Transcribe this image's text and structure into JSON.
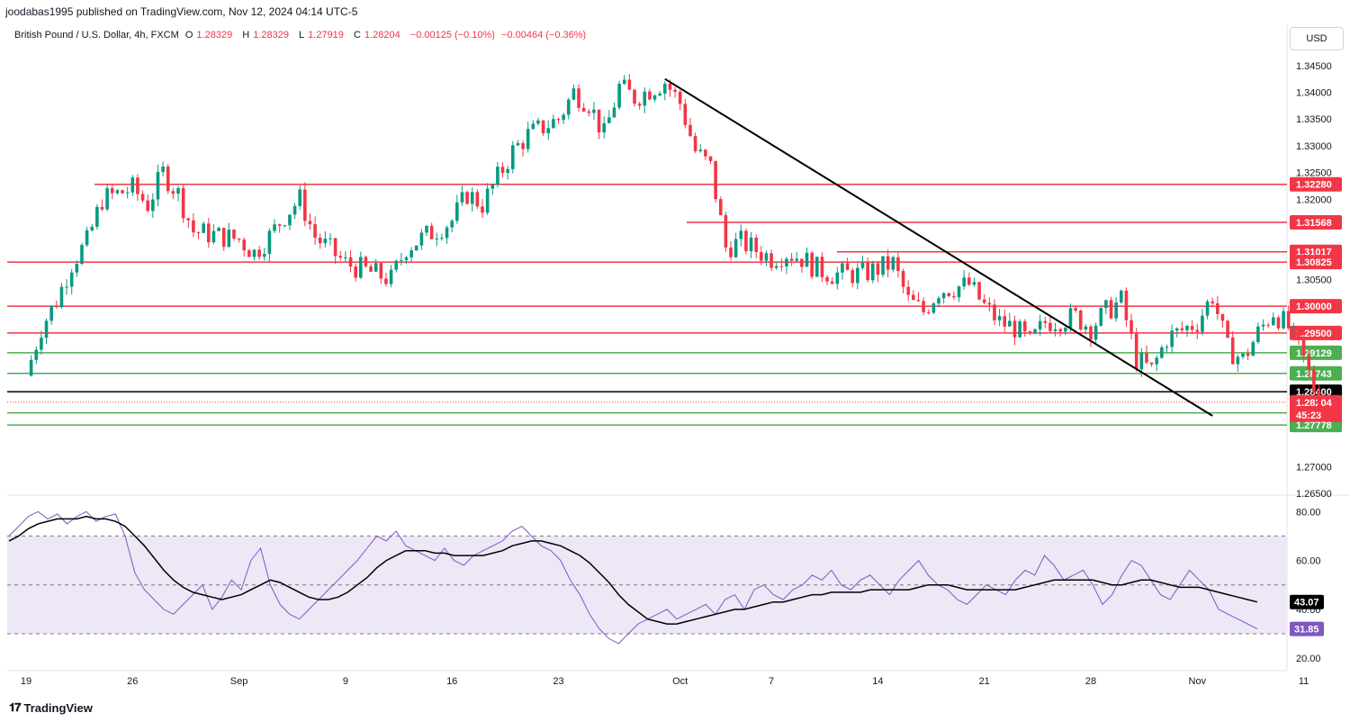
{
  "header": {
    "publisher": "joodabas1995 published on TradingView.com, Nov 12, 2024 04:14 UTC-5"
  },
  "legend": {
    "symbol": "British Pound / U.S. Dollar, 4h, FXCM",
    "open_label": "O",
    "open": "1.28329",
    "high_label": "H",
    "high": "1.28329",
    "low_label": "L",
    "low": "1.27919",
    "close_label": "C",
    "close": "1.28204",
    "change": "−0.00125 (−0.10%)",
    "change2": "−0.00464 (−0.36%)"
  },
  "currency_button": "USD",
  "brand": {
    "name": "TradingView"
  },
  "colors": {
    "up": "#089981",
    "down": "#f23645",
    "resistance": "#f23645",
    "support": "#4caf50",
    "key_level": "#000000",
    "rsi_line": "#7e57c2",
    "rsi_ma": "#000000",
    "rsi_band": "#ede7f6"
  },
  "chart_data": [
    {
      "type": "candlestick",
      "title": "British Pound / U.S. Dollar, 4h, FXCM",
      "ylim": [
        1.265,
        1.3475
      ],
      "y_ticks": [
        "1.34500",
        "1.34000",
        "1.33500",
        "1.33000",
        "1.32500",
        "1.32000",
        "1.30500",
        "1.27000",
        "1.26500"
      ],
      "x_ticks": [
        "19",
        "26",
        "Sep",
        "9",
        "16",
        "23",
        "Oct",
        "7",
        "14",
        "21",
        "28",
        "Nov",
        "11"
      ],
      "path": [
        [
          "Aug 19",
          1.287
        ],
        [
          "Aug 20",
          1.296
        ],
        [
          "Aug 21",
          1.301
        ],
        [
          "Aug 22",
          1.308
        ],
        [
          "Aug 23",
          1.312
        ],
        [
          "Aug 24",
          1.32
        ],
        [
          "Aug 26",
          1.322
        ],
        [
          "Aug 27",
          1.319
        ],
        [
          "Aug 28",
          1.325
        ],
        [
          "Aug 29",
          1.321
        ],
        [
          "Aug 30",
          1.314
        ],
        [
          "Sep 2",
          1.3125
        ],
        [
          "Sep 3",
          1.31
        ],
        [
          "Sep 4",
          1.313
        ],
        [
          "Sep 5",
          1.317
        ],
        [
          "Sep 6",
          1.32
        ],
        [
          "Sep 7",
          1.313
        ],
        [
          "Sep 9",
          1.308
        ],
        [
          "Sep 10",
          1.307
        ],
        [
          "Sep 11",
          1.306
        ],
        [
          "Sep 12",
          1.305
        ],
        [
          "Sep 13",
          1.311
        ],
        [
          "Sep 16",
          1.316
        ],
        [
          "Sep 17",
          1.321
        ],
        [
          "Sep 18",
          1.319
        ],
        [
          "Sep 19",
          1.324
        ],
        [
          "Sep 20",
          1.329
        ],
        [
          "Sep 21",
          1.332
        ],
        [
          "Sep 23",
          1.335
        ],
        [
          "Sep 24",
          1.34
        ],
        [
          "Sep 25",
          1.338
        ],
        [
          "Sep 26",
          1.332
        ],
        [
          "Sep 27",
          1.341
        ],
        [
          "Sep 28",
          1.339
        ],
        [
          "Sep 30",
          1.342
        ],
        [
          "Oct 1",
          1.338
        ],
        [
          "Oct 2",
          1.329
        ],
        [
          "Oct 3",
          1.326
        ],
        [
          "Oct 4",
          1.311
        ],
        [
          "Oct 5",
          1.312
        ],
        [
          "Oct 7",
          1.309
        ],
        [
          "Oct 8",
          1.31
        ],
        [
          "Oct 9",
          1.309
        ],
        [
          "Oct 10",
          1.307
        ],
        [
          "Oct 11",
          1.306
        ],
        [
          "Oct 13",
          1.306
        ],
        [
          "Oct 14",
          1.307
        ],
        [
          "Oct 15",
          1.308
        ],
        [
          "Oct 16",
          1.301
        ],
        [
          "Oct 17",
          1.299
        ],
        [
          "Oct 18",
          1.303
        ],
        [
          "Oct 20",
          1.304
        ],
        [
          "Oct 21",
          1.3
        ],
        [
          "Oct 22",
          1.297
        ],
        [
          "Oct 23",
          1.296
        ],
        [
          "Oct 24",
          1.293
        ],
        [
          "Oct 25",
          1.297
        ],
        [
          "Oct 27",
          1.298
        ],
        [
          "Oct 28",
          1.296
        ],
        [
          "Oct 29",
          1.299
        ],
        [
          "Oct 30",
          1.301
        ],
        [
          "Oct 31",
          1.29
        ],
        [
          "Nov 1",
          1.288
        ],
        [
          "Nov 2",
          1.294
        ],
        [
          "Nov 4",
          1.297
        ],
        [
          "Nov 5",
          1.302
        ],
        [
          "Nov 6",
          1.292
        ],
        [
          "Nov 7",
          1.29
        ],
        [
          "Nov 8",
          1.295
        ],
        [
          "Nov 9",
          1.299
        ],
        [
          "Nov 10",
          1.296
        ],
        [
          "Nov 11",
          1.29
        ],
        [
          "Nov 12",
          1.282
        ]
      ],
      "horizontal_levels": [
        {
          "value": 1.3228,
          "label": "1.32280",
          "kind": "resistance"
        },
        {
          "value": 1.31568,
          "label": "1.31568",
          "kind": "resistance"
        },
        {
          "value": 1.31017,
          "label": "1.31017",
          "kind": "resistance"
        },
        {
          "value": 1.30825,
          "label": "1.30825",
          "kind": "resistance"
        },
        {
          "value": 1.3,
          "label": "1.30000",
          "kind": "resistance"
        },
        {
          "value": 1.295,
          "label": "1.29500",
          "kind": "resistance"
        },
        {
          "value": 1.29129,
          "label": "1.29129",
          "kind": "support"
        },
        {
          "value": 1.28743,
          "label": "1.28743",
          "kind": "support"
        },
        {
          "value": 1.284,
          "label": "1.28400",
          "kind": "key"
        },
        {
          "value": 1.28005,
          "label": "1.28005",
          "kind": "support"
        },
        {
          "value": 1.27778,
          "label": "1.27778",
          "kind": "support"
        }
      ],
      "current_price": {
        "value": 1.28204,
        "label": "1.28204",
        "countdown": "45:23"
      },
      "trendline": {
        "from": [
          "Sep 30",
          1.3425
        ],
        "to": [
          "Nov 5",
          1.2795
        ]
      }
    },
    {
      "type": "line",
      "title": "RSI",
      "ylim": [
        16,
        86
      ],
      "y_ticks": [
        "80.00",
        "60.00",
        "40.00",
        "20.00"
      ],
      "bands": [
        30,
        50,
        70
      ],
      "series": [
        {
          "name": "RSI",
          "last_label": "31.85",
          "values": [
            70,
            74,
            78,
            80,
            77,
            79,
            75,
            78,
            80,
            76,
            78,
            79,
            70,
            55,
            48,
            44,
            40,
            38,
            42,
            46,
            50,
            40,
            45,
            52,
            48,
            60,
            65,
            50,
            42,
            38,
            36,
            40,
            44,
            48,
            52,
            56,
            60,
            65,
            70,
            68,
            72,
            66,
            64,
            62,
            60,
            65,
            60,
            58,
            62,
            64,
            66,
            68,
            72,
            74,
            70,
            66,
            64,
            60,
            52,
            46,
            38,
            32,
            28,
            26,
            30,
            34,
            36,
            38,
            40,
            36,
            38,
            40,
            42,
            38,
            44,
            46,
            40,
            48,
            50,
            46,
            44,
            48,
            50,
            54,
            52,
            56,
            50,
            48,
            52,
            54,
            50,
            46,
            52,
            56,
            60,
            54,
            50,
            48,
            44,
            42,
            46,
            50,
            48,
            46,
            52,
            56,
            54,
            62,
            58,
            52,
            54,
            56,
            50,
            42,
            46,
            54,
            60,
            58,
            52,
            46,
            44,
            50,
            56,
            52,
            48,
            40,
            38,
            36,
            34,
            32
          ]
        },
        {
          "name": "RSI-based MA",
          "last_label": "43.07",
          "values": [
            68,
            70,
            73,
            75,
            76,
            77,
            77,
            77,
            78,
            77,
            77,
            76,
            74,
            70,
            66,
            61,
            56,
            52,
            49,
            47,
            46,
            45,
            44,
            45,
            46,
            48,
            50,
            52,
            51,
            49,
            47,
            45,
            44,
            44,
            45,
            47,
            50,
            53,
            57,
            60,
            62,
            64,
            64,
            64,
            63,
            63,
            62,
            62,
            62,
            62,
            63,
            64,
            66,
            67,
            68,
            68,
            67,
            66,
            64,
            62,
            59,
            55,
            51,
            46,
            42,
            39,
            36,
            35,
            34,
            34,
            35,
            36,
            37,
            38,
            39,
            40,
            40,
            41,
            42,
            43,
            43,
            44,
            45,
            46,
            46,
            47,
            47,
            47,
            47,
            48,
            48,
            48,
            48,
            48,
            49,
            50,
            50,
            50,
            49,
            48,
            48,
            48,
            48,
            48,
            48,
            49,
            50,
            51,
            52,
            52,
            52,
            52,
            52,
            51,
            50,
            50,
            51,
            52,
            52,
            51,
            50,
            49,
            49,
            49,
            48,
            47,
            46,
            45,
            44,
            43
          ]
        }
      ]
    }
  ]
}
